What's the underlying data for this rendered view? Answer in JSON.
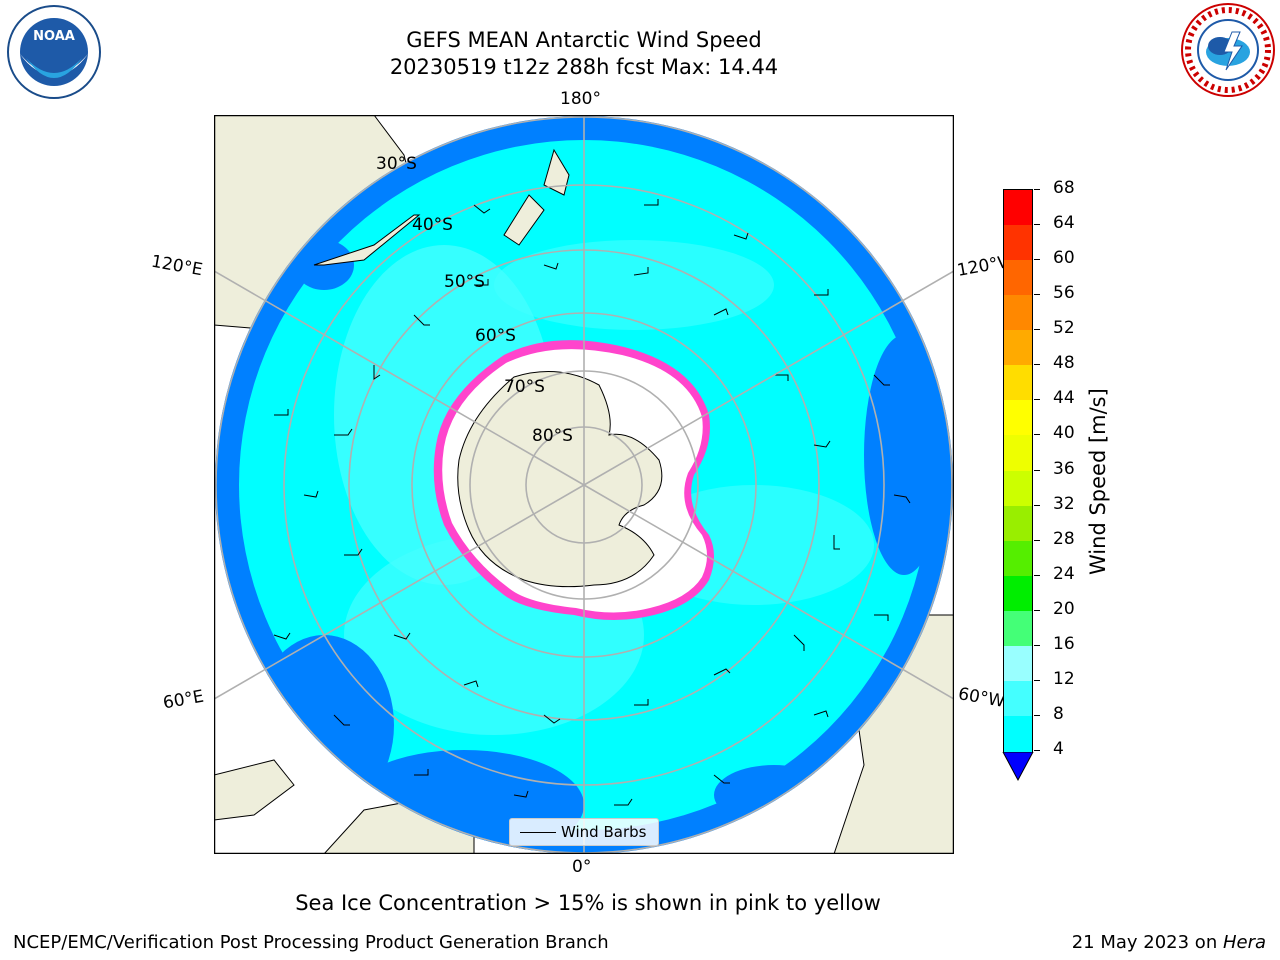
{
  "title_line1": "GEFS MEAN Antarctic Wind Speed",
  "title_line2": "20230519 t12z 288h fcst   Max: 14.44",
  "caption": "Sea Ice Concentration > 15% is shown in pink to yellow",
  "footer_left": "NCEP/EMC/Verification Post Processing Product Generation Branch",
  "footer_date": "21 May 2023 on ",
  "footer_machine": "Hera",
  "logos": {
    "left": "noaa-logo",
    "right": "nws-logo"
  },
  "map": {
    "projection": "south-polar-stereographic",
    "lon_labels": {
      "top": "180°",
      "bottom": "0°",
      "left_upper": "120°E",
      "right_upper": "120°W",
      "left_lower": "60°E",
      "right_lower": "60°W"
    },
    "lat_labels": [
      "30°S",
      "40°S",
      "50°S",
      "60°S",
      "70°S",
      "80°S"
    ],
    "legend_label": "Wind Barbs",
    "colors": {
      "land": "#eeeedb",
      "ocean_4_8": "#0080ff",
      "ocean_8_12": "#00ffff",
      "ocean_12_16": "#4dffff",
      "ice": "#ff44cc",
      "ice_edge": "#ffaa00"
    }
  },
  "colorbar": {
    "label": "Wind Speed [m/s]",
    "ticks": [
      "68",
      "64",
      "60",
      "56",
      "52",
      "48",
      "44",
      "40",
      "36",
      "32",
      "28",
      "24",
      "20",
      "16",
      "12",
      "8",
      "4"
    ],
    "colors": [
      "#ff0000",
      "#ff3300",
      "#ff6600",
      "#ff8800",
      "#ffaa00",
      "#ffdd00",
      "#ffff00",
      "#eeff00",
      "#ccff00",
      "#99ee00",
      "#55ee00",
      "#00ee00",
      "#44ff77",
      "#99ffff",
      "#44ffff",
      "#00ffff",
      "#0080ff"
    ],
    "extend_color": "#0000ff"
  }
}
